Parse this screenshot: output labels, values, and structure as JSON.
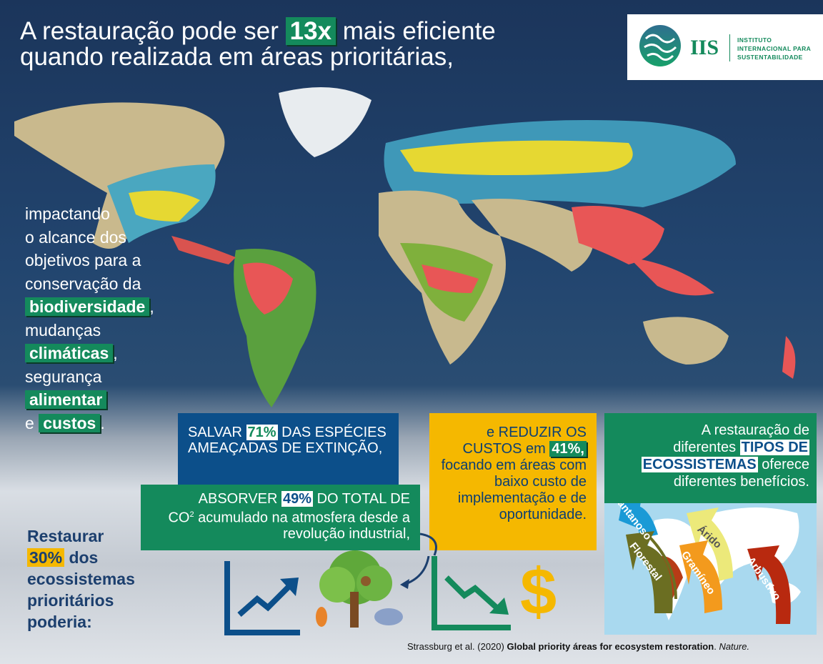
{
  "title": {
    "line1_pre": "A restauração pode ser",
    "highlight": "13x",
    "line1_post": "mais eficiente",
    "line2": "quando realizada em áreas prioritárias,"
  },
  "logo": {
    "mark": "IIS",
    "name_line1": "INSTITUTO",
    "name_line2": "INTERNACIONAL PARA",
    "name_line3": "SUSTENTABILIDADE"
  },
  "left_text": {
    "l1": "impactando",
    "l2": "o alcance dos",
    "l3": "objetivos para a",
    "l4": "conservação da",
    "h1": "biodiversidade",
    "l5": "mudanças",
    "h2": "climáticas",
    "l6": "segurança",
    "h3": "alimentar",
    "l7": "e",
    "h4": "custos"
  },
  "species_box": {
    "pre": "SALVAR",
    "pct": "71%",
    "post": "DAS ESPÉCIES AMEAÇADAS DE EXTINÇÃO,"
  },
  "carbon_box": {
    "pre": "ABSORVER",
    "pct": "49%",
    "post": "DO TOTAL DE",
    "co": "CO",
    "sup": "2",
    "rest": "acumulado na atmosfera desde a revolução industrial,"
  },
  "cost_box": {
    "pre": "e REDUZIR OS CUSTOS em",
    "pct": "41%,",
    "post": "focando em áreas com baixo custo de implementação e de oportunidade."
  },
  "eco_box": {
    "l1": "A restauração de",
    "l2": "diferentes",
    "h": "TIPOS DE",
    "h2": "ECOSSISTEMAS",
    "l3": "oferece",
    "l4": "diferentes benefícios.",
    "arrows": [
      {
        "label": "Pantanoso",
        "color": "#1a9ad6"
      },
      {
        "label": "Florestal",
        "color": "#6b6e22"
      },
      {
        "label": "Árido",
        "color": "#ece97a"
      },
      {
        "label": "Gramíneo",
        "color": "#f39a1d"
      },
      {
        "label": "Arbustivo",
        "color": "#b8290f"
      }
    ]
  },
  "restaurar": {
    "l1": "Restaurar",
    "pct": "30%",
    "l2": "dos",
    "l3": "ecossistemas",
    "l4": "prioritários",
    "l5": "poderia:"
  },
  "citation": {
    "authors": "Strassburg et al. (2020)",
    "title": "Global priority áreas for ecosystem restoration",
    "journal": "Nature."
  },
  "colors": {
    "green": "#148a5c",
    "blue": "#0c4f8a",
    "yellow": "#f5b800",
    "navy": "#1d3a60"
  }
}
